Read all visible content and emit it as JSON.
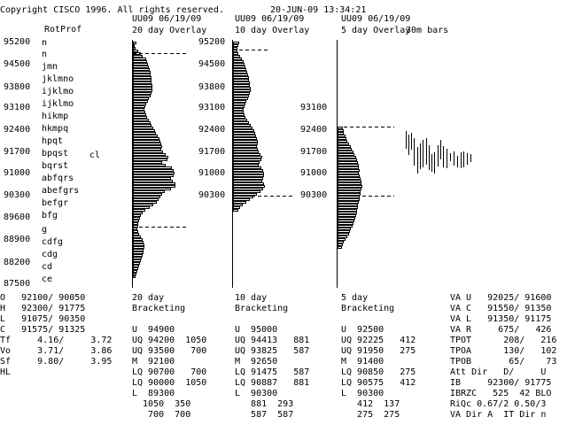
{
  "header": {
    "copyright": "Copyright CISCO 1996. All rights reserved.",
    "datetime": "20-JUN-09 13:34:21"
  },
  "left_panel": {
    "title": "RotProf",
    "price_labels": [
      "95200",
      "94500",
      "93800",
      "93100",
      "92400",
      "91700",
      "91000",
      "90300",
      "89600",
      "88900",
      "88200",
      "87500"
    ],
    "letter_labels": [
      "n",
      "n",
      "jmn",
      "jklmno",
      "ijklmo",
      "ijklmo",
      "hikmp",
      "hkmpq",
      "hpqt",
      "bpqst",
      "bqrst",
      "abfqrs",
      "abefgrs",
      "befgr",
      "bfg",
      "g",
      "cdfg",
      "cdg",
      "cd",
      "ce"
    ],
    "close_marker": "cl"
  },
  "overlays": [
    {
      "header": "UU09 06/19/09",
      "title": "20 day Overlay"
    },
    {
      "header": "UU09 06/19/09",
      "title": "10 day Overlay"
    },
    {
      "header": "UU09 06/19/09",
      "title": "5 day Overlay"
    }
  ],
  "overlay_mid_labels": {
    "p10": [
      "95200",
      "94500",
      "93800",
      "93100",
      "92400",
      "91700",
      "91000",
      "90300"
    ],
    "p5": [
      "93100",
      "92400",
      "91700",
      "91000",
      "90300"
    ]
  },
  "bars_label": "30m bars",
  "summary": {
    "rows": [
      "O   92100/ 90050",
      "H   92300/ 91775",
      "L   91075/ 90350",
      "C   91575/ 91325"
    ],
    "stats": [
      "Tf     4.16/     3.72",
      "Vo     3.71/     3.86",
      "Sf     9.80/     3.95",
      "HL"
    ]
  },
  "bracketing": [
    {
      "days": "20 day",
      "label": "Bracketing",
      "lines": [
        "U  94900",
        "UQ 94200  1050",
        "UQ 93500   700",
        "M  92100",
        "LQ 90700   700",
        "LQ 90000  1050",
        "L  89300",
        "  1050  350",
        "   700  700"
      ]
    },
    {
      "days": "10 day",
      "label": "Bracketing",
      "lines": [
        "U  95000",
        "UQ 94413   881",
        "UQ 93825   587",
        "M  92650",
        "LQ 91475   587",
        "LQ 90887   881",
        "L  90300",
        "   881  293",
        "   587  587"
      ]
    },
    {
      "days": "5 day",
      "label": "Bracketing",
      "lines": [
        "U  92500",
        "UQ 92225   412",
        "UQ 91950   275",
        "M  91400",
        "LQ 90850   275",
        "LQ 90575   412",
        "L  90300",
        "   412  137",
        "   275  275"
      ]
    }
  ],
  "value_area": [
    "VA U   92025/ 91600",
    "VA C   91550/ 91350",
    "VA L   91350/ 91175",
    "VA R     675/   426",
    "TPOT      208/   216",
    "TPOA      130/   102",
    "TPOB       65/    73",
    "Att Dir   D/     U",
    "IB     92300/ 91775",
    "IBRZC   525  42 BLO",
    "RiQc 0.67/2 0.50/3",
    "VA Dir A  IT Dir n"
  ],
  "histograms": {
    "h20": [
      3,
      1,
      2,
      5,
      8,
      10,
      14,
      15,
      16,
      17,
      18,
      19,
      19,
      20,
      20,
      20,
      21,
      21,
      21,
      20,
      19,
      17,
      16,
      14,
      13,
      12,
      13,
      14,
      15,
      17,
      19,
      20,
      22,
      24,
      25,
      27,
      29,
      30,
      31,
      32,
      31,
      33,
      36,
      39,
      38,
      32,
      36,
      43,
      45,
      46,
      45,
      42,
      44,
      47,
      47,
      42,
      35,
      32,
      30,
      28,
      26,
      22,
      18,
      13,
      10,
      8,
      7,
      6,
      5,
      5,
      4,
      5,
      6,
      8,
      10,
      11,
      12,
      12,
      11,
      11,
      10,
      9,
      8,
      7,
      6,
      5,
      4,
      3,
      2
    ],
    "h10": [
      6,
      5,
      4,
      4,
      5,
      7,
      9,
      11,
      12,
      13,
      14,
      15,
      16,
      17,
      17,
      18,
      18,
      19,
      19,
      18,
      17,
      16,
      14,
      13,
      12,
      11,
      11,
      12,
      13,
      15,
      17,
      19,
      21,
      23,
      24,
      25,
      26,
      27,
      27,
      26,
      27,
      28,
      30,
      32,
      31,
      29,
      28,
      31,
      33,
      34,
      34,
      33,
      32,
      34,
      35,
      33,
      30,
      26,
      22,
      18,
      14,
      10,
      7,
      5
    ],
    "h5": [
      5,
      6,
      6,
      8,
      9,
      10,
      12,
      14,
      15,
      17,
      18,
      20,
      21,
      22,
      23,
      23,
      24,
      23,
      24,
      25,
      26,
      26,
      27,
      26,
      25,
      25,
      24,
      24,
      23,
      22,
      22,
      21,
      21,
      20,
      19,
      18,
      17,
      16,
      14,
      13,
      12,
      10,
      8,
      6,
      5,
      4
    ],
    "bars": [
      [
        3,
        148,
        168
      ],
      [
        6,
        152,
        175
      ],
      [
        9,
        150,
        169
      ],
      [
        12,
        156,
        187
      ],
      [
        16,
        166,
        196
      ],
      [
        19,
        162,
        191
      ],
      [
        22,
        158,
        189
      ],
      [
        26,
        156,
        186
      ],
      [
        29,
        164,
        192
      ],
      [
        32,
        174,
        194
      ],
      [
        35,
        172,
        196
      ],
      [
        39,
        164,
        188
      ],
      [
        42,
        158,
        180
      ],
      [
        45,
        165,
        189
      ],
      [
        49,
        168,
        190
      ],
      [
        53,
        173,
        182
      ],
      [
        57,
        171,
        187
      ],
      [
        61,
        176,
        189
      ],
      [
        65,
        172,
        190
      ],
      [
        68,
        171,
        189
      ],
      [
        72,
        173,
        186
      ],
      [
        76,
        174,
        183
      ]
    ]
  }
}
